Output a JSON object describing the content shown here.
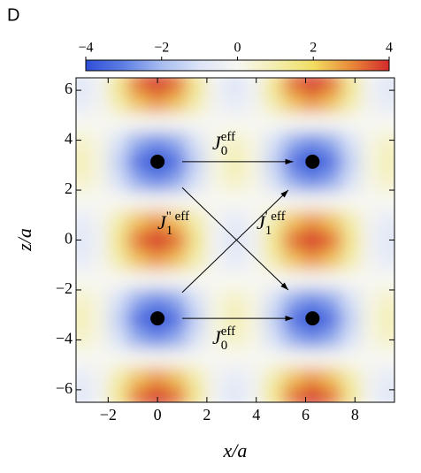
{
  "chart_data": {
    "type": "density",
    "panel_label": "D",
    "xlabel": "x/a",
    "ylabel": "z/a",
    "xlim": [
      -3.3,
      9.6
    ],
    "ylim": [
      -6.5,
      6.5
    ],
    "xticks": [
      {
        "value": -2,
        "label": "−2"
      },
      0,
      2,
      4,
      6,
      8
    ],
    "yticks": [
      {
        "value": -6,
        "label": "−6"
      },
      {
        "value": -4,
        "label": "−4"
      },
      {
        "value": -2,
        "label": "−2"
      },
      0,
      2,
      4,
      6
    ],
    "colorbar": {
      "lim": [
        -4,
        4
      ],
      "ticks": [
        {
          "value": -4,
          "label": "−4"
        },
        {
          "value": -2,
          "label": "−2"
        },
        0,
        2,
        4
      ],
      "colors": [
        "#2e4fd8",
        "#5f7fe4",
        "#a8bdf0",
        "#dce4f7",
        "#f7f7f2",
        "#f3eeb0",
        "#f2dd62",
        "#e88a3a",
        "#d42a2a"
      ]
    },
    "x": [
      -3.14,
      -2.36,
      -1.57,
      -0.79,
      0,
      0.79,
      1.57,
      2.36,
      3.14,
      3.93,
      4.71,
      5.5,
      6.28,
      7.07,
      7.85,
      8.64,
      9.42
    ],
    "y": [
      -6.28,
      -5.5,
      -4.71,
      -3.93,
      -3.14,
      -2.36,
      -1.57,
      -0.79,
      0,
      0.79,
      1.57,
      2.36,
      3.14,
      3.93,
      4.71,
      5.5,
      6.28
    ],
    "z": [
      [
        -1,
        -0.27,
        1.5,
        3.27,
        4,
        3.27,
        1.5,
        -0.27,
        -1,
        -0.27,
        1.5,
        3.27,
        4,
        3.27,
        1.5,
        -0.27,
        -1
      ],
      [
        -0.71,
        -0.19,
        1.06,
        2.31,
        2.83,
        2.31,
        1.06,
        -0.19,
        -0.71,
        -0.19,
        1.06,
        2.31,
        2.83,
        2.31,
        1.06,
        -0.19,
        -0.71
      ],
      [
        0,
        0,
        0,
        0,
        0,
        0,
        0,
        0,
        0,
        0,
        0,
        0,
        0,
        0,
        0,
        0,
        0
      ],
      [
        0.71,
        0.19,
        -1.06,
        -2.31,
        -2.83,
        -2.31,
        -1.06,
        0.19,
        0.71,
        0.19,
        -1.06,
        -2.31,
        -2.83,
        -2.31,
        -1.06,
        0.19,
        0.71
      ],
      [
        1,
        0.27,
        -1.5,
        -3.27,
        -4,
        -3.27,
        -1.5,
        0.27,
        1,
        0.27,
        -1.5,
        -3.27,
        -4,
        -3.27,
        -1.5,
        0.27,
        1
      ],
      [
        0.71,
        0.19,
        -1.06,
        -2.31,
        -2.83,
        -2.31,
        -1.06,
        0.19,
        0.71,
        0.19,
        -1.06,
        -2.31,
        -2.83,
        -2.31,
        -1.06,
        0.19,
        0.71
      ],
      [
        0,
        0,
        0,
        0,
        0,
        0,
        0,
        0,
        0,
        0,
        0,
        0,
        0,
        0,
        0,
        0,
        0
      ],
      [
        -0.71,
        -0.19,
        1.06,
        2.31,
        2.83,
        2.31,
        1.06,
        -0.19,
        -0.71,
        -0.19,
        1.06,
        2.31,
        2.83,
        2.31,
        1.06,
        -0.19,
        -0.71
      ],
      [
        -1,
        -0.27,
        1.5,
        3.27,
        4,
        3.27,
        1.5,
        -0.27,
        -1,
        -0.27,
        1.5,
        3.27,
        4,
        3.27,
        1.5,
        -0.27,
        -1
      ],
      [
        -0.71,
        -0.19,
        1.06,
        2.31,
        2.83,
        2.31,
        1.06,
        -0.19,
        -0.71,
        -0.19,
        1.06,
        2.31,
        2.83,
        2.31,
        1.06,
        -0.19,
        -0.71
      ],
      [
        0,
        0,
        0,
        0,
        0,
        0,
        0,
        0,
        0,
        0,
        0,
        0,
        0,
        0,
        0,
        0,
        0
      ],
      [
        0.71,
        0.19,
        -1.06,
        -2.31,
        -2.83,
        -2.31,
        -1.06,
        0.19,
        0.71,
        0.19,
        -1.06,
        -2.31,
        -2.83,
        -2.31,
        -1.06,
        0.19,
        0.71
      ],
      [
        1,
        0.27,
        -1.5,
        -3.27,
        -4,
        -3.27,
        -1.5,
        0.27,
        1,
        0.27,
        -1.5,
        -3.27,
        -4,
        -3.27,
        -1.5,
        0.27,
        1
      ],
      [
        0.71,
        0.19,
        -1.06,
        -2.31,
        -2.83,
        -2.31,
        -1.06,
        0.19,
        0.71,
        0.19,
        -1.06,
        -2.31,
        -2.83,
        -2.31,
        -1.06,
        0.19,
        0.71
      ],
      [
        0,
        0,
        0,
        0,
        0,
        0,
        0,
        0,
        0,
        0,
        0,
        0,
        0,
        0,
        0,
        0,
        0
      ],
      [
        -0.71,
        -0.19,
        1.06,
        2.31,
        2.83,
        2.31,
        1.06,
        -0.19,
        -0.71,
        -0.19,
        1.06,
        2.31,
        2.83,
        2.31,
        1.06,
        -0.19,
        -0.71
      ],
      [
        -1,
        -0.27,
        1.5,
        3.27,
        4,
        3.27,
        1.5,
        -0.27,
        -1,
        -0.27,
        1.5,
        3.27,
        4,
        3.27,
        1.5,
        -0.27,
        -1
      ]
    ],
    "points": {
      "x": [
        0,
        6.28,
        0,
        6.28
      ],
      "y": [
        3.14,
        3.14,
        -3.14,
        -3.14
      ],
      "color": "#000000"
    },
    "arrows": [
      {
        "from": [
          1.0,
          3.14
        ],
        "to": [
          5.5,
          3.14
        ]
      },
      {
        "from": [
          1.0,
          -3.14
        ],
        "to": [
          5.5,
          -3.14
        ]
      },
      {
        "from": [
          1.0,
          2.1
        ],
        "to": [
          5.3,
          -2.0
        ]
      },
      {
        "from": [
          1.0,
          -2.1
        ],
        "to": [
          5.3,
          2.0
        ]
      }
    ],
    "annotations": [
      {
        "text": "J",
        "sub": "0",
        "sup": "eff"
      },
      {
        "text": "J",
        "sub": "0",
        "sup": "eff"
      },
      {
        "text": "J",
        "sub": "1",
        "sup": "\" eff"
      },
      {
        "text": "J",
        "sub": "1",
        "sup": "' eff"
      }
    ]
  }
}
